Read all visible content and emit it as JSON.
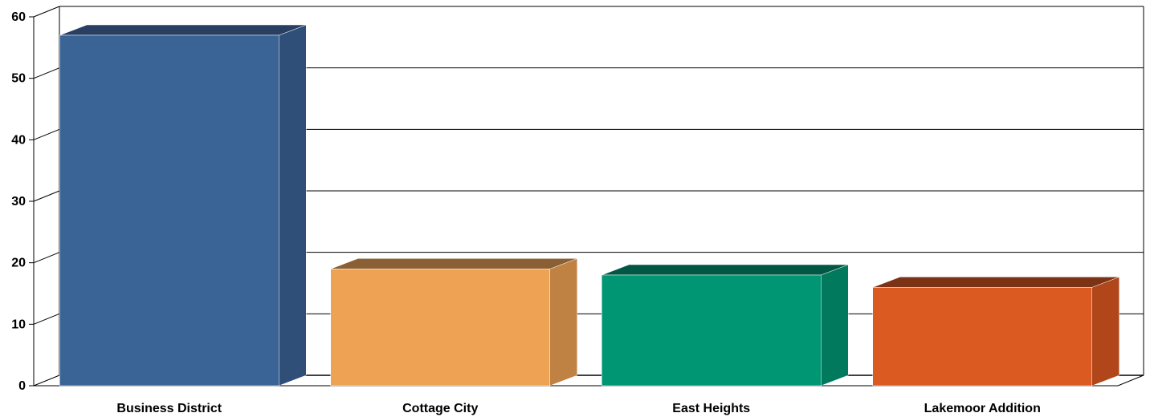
{
  "chart_data": {
    "type": "bar",
    "title": "",
    "xlabel": "",
    "ylabel": "",
    "categories": [
      "Business District",
      "Cottage City",
      "East Heights",
      "Lakemoor Addition"
    ],
    "values": [
      57,
      19,
      18,
      16
    ],
    "ylim": [
      0,
      60
    ],
    "yticks": [
      "0",
      "10",
      "20",
      "30",
      "40",
      "50",
      "60"
    ],
    "grid": true,
    "legend": "none",
    "style": "3d",
    "colors": {
      "bars": [
        {
          "front": "#3A6496",
          "side": "#2F4F79",
          "top": "#283F63"
        },
        {
          "front": "#EDA254",
          "side": "#C08242",
          "top": "#8A5F33"
        },
        {
          "front": "#009673",
          "side": "#00795C",
          "top": "#005744"
        },
        {
          "front": "#DB5A21",
          "side": "#B04619",
          "top": "#7C3214"
        }
      ],
      "grid": "#000000",
      "axis": "#000000"
    }
  }
}
